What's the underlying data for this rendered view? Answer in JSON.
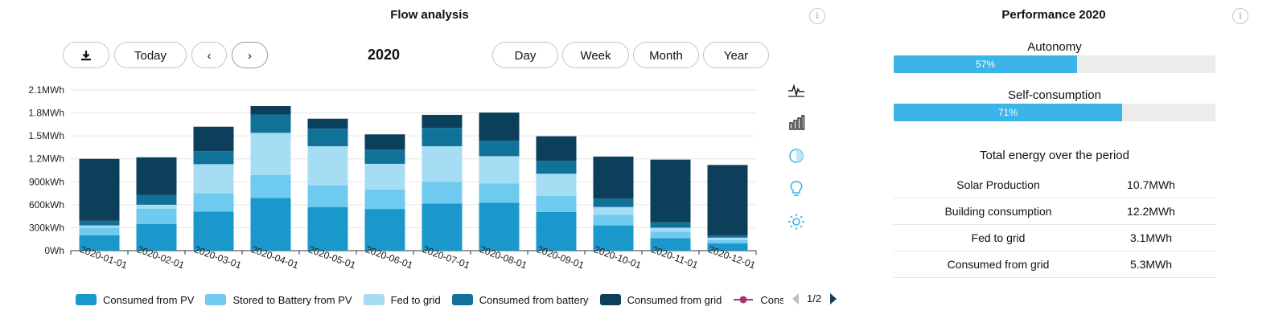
{
  "left_panel": {
    "title": "Flow analysis",
    "period_label": "2020",
    "buttons": {
      "download_icon": "download-icon",
      "today": "Today",
      "prev": "‹",
      "next": "›",
      "day": "Day",
      "week": "Week",
      "month": "Month",
      "year": "Year"
    },
    "side_icons": [
      "line-chart-icon",
      "bar-chart-icon",
      "contrast-icon",
      "bulb-icon",
      "sun-icon"
    ],
    "legend_page": "1/2"
  },
  "right_panel": {
    "title": "Performance 2020",
    "autonomy": {
      "label": "Autonomy",
      "value": 0.57,
      "text": "57%"
    },
    "self_consumption": {
      "label": "Self-consumption",
      "value": 0.71,
      "text": "71%"
    },
    "totals_title": "Total energy over the period",
    "totals": [
      {
        "label": "Solar Production",
        "value": "10.7MWh"
      },
      {
        "label": "Building consumption",
        "value": "12.2MWh"
      },
      {
        "label": "Fed to grid",
        "value": "3.1MWh"
      },
      {
        "label": "Consumed from grid",
        "value": "5.3MWh"
      }
    ],
    "accent_color": "#3bb5e8"
  },
  "chart_data": {
    "type": "bar",
    "stacked": true,
    "title": "",
    "xlabel": "",
    "ylabel": "",
    "ylim": [
      0,
      2100
    ],
    "y_ticks": [
      0,
      300,
      600,
      900,
      1200,
      1500,
      1800,
      2100
    ],
    "y_tick_labels": [
      "0Wh",
      "300kWh",
      "600kWh",
      "900kWh",
      "1.2MWh",
      "1.5MWh",
      "1.8MWh",
      "2.1MWh"
    ],
    "categories": [
      "2020-01-01",
      "2020-02-01",
      "2020-03-01",
      "2020-04-01",
      "2020-05-01",
      "2020-06-01",
      "2020-07-01",
      "2020-08-01",
      "2020-09-01",
      "2020-10-01",
      "2020-11-01",
      "2020-12-01"
    ],
    "series": [
      {
        "name": "Consumed from PV",
        "color": "#1a98cc",
        "values": [
          200,
          350,
          510,
          690,
          570,
          545,
          615,
          625,
          505,
          330,
          165,
          95
        ]
      },
      {
        "name": "Stored to Battery from PV",
        "color": "#6ecbef",
        "values": [
          100,
          200,
          240,
          300,
          285,
          255,
          285,
          255,
          210,
          140,
          85,
          45
        ]
      },
      {
        "name": "Fed to grid",
        "color": "#a6dcf4",
        "values": [
          30,
          50,
          380,
          550,
          510,
          335,
          465,
          355,
          290,
          100,
          50,
          30
        ]
      },
      {
        "name": "Consumed from battery",
        "color": "#117299",
        "values": [
          60,
          130,
          170,
          240,
          230,
          185,
          240,
          200,
          170,
          110,
          70,
          30
        ]
      },
      {
        "name": "Consumed from grid",
        "color": "#0c3f5a",
        "values": [
          810,
          490,
          320,
          110,
          130,
          200,
          170,
          370,
          320,
          550,
          820,
          920
        ]
      }
    ],
    "extra_legend": {
      "name": "Consumption forec",
      "color": "#9e3a6a"
    },
    "grid": true,
    "legend_position": "bottom"
  }
}
